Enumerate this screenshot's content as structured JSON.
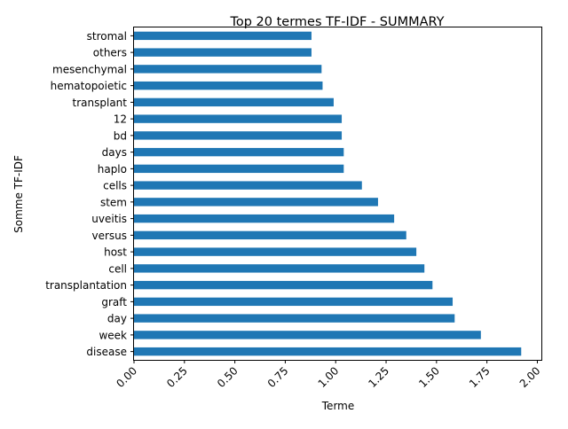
{
  "chart_data": {
    "type": "bar",
    "orientation": "horizontal",
    "title": "Top 20 termes TF-IDF - SUMMARY",
    "xlabel": "Terme",
    "ylabel": "Somme TF-IDF",
    "xlim": [
      0.0,
      2.02
    ],
    "xticks": [
      "0.00",
      "0.25",
      "0.50",
      "0.75",
      "1.00",
      "1.25",
      "1.50",
      "1.75",
      "2.00"
    ],
    "grid": false,
    "bar_color": "#1f77b4",
    "categories": [
      "disease",
      "week",
      "day",
      "graft",
      "transplantation",
      "cell",
      "host",
      "versus",
      "uveitis",
      "stem",
      "cells",
      "haplo",
      "days",
      "bd",
      "12",
      "transplant",
      "hematopoietic",
      "mesenchymal",
      "others",
      "stromal"
    ],
    "values": [
      1.92,
      1.72,
      1.59,
      1.58,
      1.48,
      1.44,
      1.4,
      1.35,
      1.29,
      1.21,
      1.13,
      1.04,
      1.04,
      1.03,
      1.03,
      0.99,
      0.935,
      0.93,
      0.88,
      0.88
    ]
  }
}
